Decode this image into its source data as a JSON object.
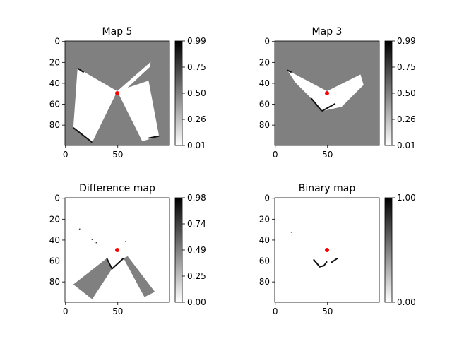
{
  "chart_data": [
    {
      "type": "heatmap",
      "title": "Map 5",
      "xticks": [
        0,
        50
      ],
      "yticks": [
        0,
        20,
        40,
        60,
        80
      ],
      "xlim": [
        0,
        99
      ],
      "ylim": [
        99,
        0
      ],
      "colorbar_ticks": [
        "0.99",
        "0.75",
        "0.50",
        "0.26",
        "0.01"
      ],
      "colorbar_range": [
        0.01,
        0.99
      ],
      "background_value": 0.5,
      "robot_marker": [
        50,
        50
      ],
      "free_regions": [
        [
          [
            12,
            26
          ],
          [
            50,
            48
          ],
          [
            26,
            97
          ],
          [
            8,
            83
          ]
        ],
        [
          [
            50,
            48
          ],
          [
            80,
            38
          ],
          [
            90,
            91
          ],
          [
            74,
            96
          ]
        ],
        [
          [
            50,
            48
          ],
          [
            82,
            20
          ],
          [
            81,
            25
          ],
          [
            52,
            52
          ]
        ]
      ],
      "occupied_edges": [
        [
          [
            8,
            83
          ],
          [
            26,
            97
          ]
        ],
        [
          [
            80,
            93
          ],
          [
            90,
            91
          ]
        ],
        [
          [
            12,
            26
          ],
          [
            18,
            30
          ]
        ]
      ]
    },
    {
      "type": "heatmap",
      "title": "Map 3",
      "xticks": [
        0,
        50
      ],
      "yticks": [
        0,
        20,
        40,
        60,
        80
      ],
      "xlim": [
        0,
        99
      ],
      "ylim": [
        99,
        0
      ],
      "colorbar_ticks": [
        "0.99",
        "0.75",
        "0.50",
        "0.26",
        "0.01"
      ],
      "colorbar_range": [
        0.01,
        0.99
      ],
      "background_value": 0.5,
      "robot_marker": [
        50,
        50
      ],
      "free_regions": [
        [
          [
            12,
            28
          ],
          [
            50,
            48
          ],
          [
            82,
            32
          ],
          [
            85,
            42
          ],
          [
            64,
            63
          ],
          [
            45,
            67
          ],
          [
            35,
            55
          ],
          [
            20,
            40
          ]
        ]
      ],
      "occupied_edges": [
        [
          [
            35,
            55
          ],
          [
            45,
            67
          ]
        ],
        [
          [
            45,
            67
          ],
          [
            58,
            60
          ]
        ],
        [
          [
            12,
            28
          ],
          [
            16,
            30
          ]
        ]
      ]
    },
    {
      "type": "heatmap",
      "title": "Difference map",
      "xticks": [
        0,
        50
      ],
      "yticks": [
        0,
        20,
        40,
        60,
        80
      ],
      "xlim": [
        0,
        99
      ],
      "ylim": [
        99,
        0
      ],
      "colorbar_ticks": [
        "0.98",
        "0.74",
        "0.49",
        "0.25",
        "0.00"
      ],
      "colorbar_range": [
        0.0,
        0.98
      ],
      "background_value": 0.0,
      "robot_marker": [
        50,
        50
      ],
      "gray_regions": [
        [
          [
            8,
            83
          ],
          [
            40,
            58
          ],
          [
            45,
            68
          ],
          [
            26,
            97
          ]
        ],
        [
          [
            56,
            58
          ],
          [
            60,
            56
          ],
          [
            86,
            90
          ],
          [
            76,
            95
          ]
        ]
      ],
      "dark_edges": [
        [
          [
            40,
            58
          ],
          [
            45,
            68
          ]
        ],
        [
          [
            45,
            68
          ],
          [
            56,
            58
          ]
        ]
      ],
      "specks": [
        [
          14,
          30
        ],
        [
          26,
          40
        ],
        [
          30,
          43
        ],
        [
          58,
          42
        ]
      ]
    },
    {
      "type": "heatmap",
      "title": "Binary map",
      "xticks": [
        0,
        50
      ],
      "yticks": [
        0,
        20,
        40,
        60,
        80
      ],
      "xlim": [
        0,
        99
      ],
      "ylim": [
        99,
        0
      ],
      "colorbar_ticks": [
        "1.00",
        "0.00"
      ],
      "colorbar_range": [
        0.0,
        1.0
      ],
      "background_value": 0.0,
      "robot_marker": [
        50,
        50
      ],
      "dark_edges": [
        [
          [
            37,
            59
          ],
          [
            43,
            66
          ],
          [
            47,
            65
          ],
          [
            50,
            61
          ]
        ],
        [
          [
            54,
            62
          ],
          [
            60,
            58
          ]
        ]
      ],
      "specks": [
        [
          16,
          33
        ]
      ]
    }
  ]
}
